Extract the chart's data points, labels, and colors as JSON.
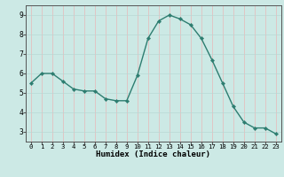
{
  "x": [
    0,
    1,
    2,
    3,
    4,
    5,
    6,
    7,
    8,
    9,
    10,
    11,
    12,
    13,
    14,
    15,
    16,
    17,
    18,
    19,
    20,
    21,
    22,
    23
  ],
  "y": [
    5.5,
    6.0,
    6.0,
    5.6,
    5.2,
    5.1,
    5.1,
    4.7,
    4.6,
    4.6,
    5.9,
    7.8,
    8.7,
    9.0,
    8.8,
    8.5,
    7.8,
    6.7,
    5.5,
    4.3,
    3.5,
    3.2,
    3.2,
    2.9
  ],
  "line_color": "#2d7d70",
  "marker": "D",
  "marker_size": 2.2,
  "line_width": 1.0,
  "bg_color": "#cce9e5",
  "grid_color": "#b8d8d4",
  "grid_color_red": "#e8b8b8",
  "xlabel": "Humidex (Indice chaleur)",
  "xlim": [
    -0.5,
    23.5
  ],
  "ylim": [
    2.5,
    9.5
  ],
  "yticks": [
    3,
    4,
    5,
    6,
    7,
    8,
    9
  ],
  "xticks": [
    0,
    1,
    2,
    3,
    4,
    5,
    6,
    7,
    8,
    9,
    10,
    11,
    12,
    13,
    14,
    15,
    16,
    17,
    18,
    19,
    20,
    21,
    22,
    23
  ],
  "xlabel_fontsize": 6.5,
  "tick_fontsize": 6.0,
  "spine_color": "#555555"
}
